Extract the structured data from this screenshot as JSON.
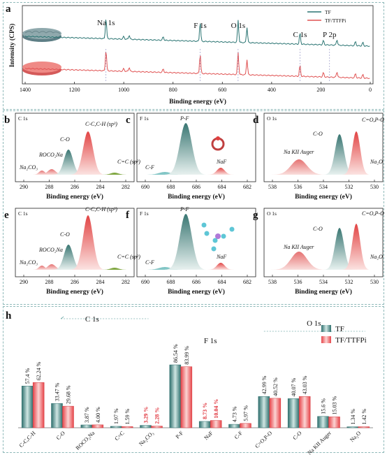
{
  "panel_a": {
    "letter": "a",
    "xlabel": "Binding energy (eV)",
    "ylabel": "Intensity (CPS)",
    "xticks": [
      "1400",
      "1200",
      "1000",
      "800",
      "600",
      "400",
      "200",
      "0"
    ],
    "peak_labels": [
      "Na 1s",
      "F 1s",
      "O 1s",
      "C 1s",
      "P 2p"
    ],
    "legend": [
      "TF",
      "TF/TTFPi"
    ],
    "colors": {
      "TF": "#2a7472",
      "TF/TTFPi": "#e05252"
    }
  },
  "xps_panels": [
    {
      "letter": "b",
      "element": "C 1s",
      "xticks": [
        "290",
        "288",
        "286",
        "284",
        "282"
      ],
      "xlabel": "Binding energy (eV)",
      "peaks": [
        "Na₂CO₃",
        "ROCO₂Na",
        "C-O",
        "C-C,C-H (sp³)",
        "C=C (sp²)"
      ]
    },
    {
      "letter": "c",
      "element": "F 1s",
      "xticks": [
        "690",
        "688",
        "686",
        "684",
        "682"
      ],
      "xlabel": "Binding energy (eV)",
      "peaks": [
        "C-F",
        "P-F",
        "NaF"
      ]
    },
    {
      "letter": "d",
      "element": "O 1s",
      "xticks": [
        "538",
        "536",
        "534",
        "532",
        "530"
      ],
      "xlabel": "Binding energy (eV)",
      "peaks": [
        "Na KII Auger",
        "C-O",
        "C=O,P-O",
        "Na₂O"
      ]
    },
    {
      "letter": "e",
      "element": "C 1s",
      "xticks": [
        "290",
        "288",
        "286",
        "284",
        "282"
      ],
      "xlabel": "Binding energy (eV)",
      "peaks": [
        "Na₂CO₃",
        "ROCO₂Na",
        "C-O",
        "C-C,C-H (sp³)",
        "C=C (sp²)"
      ]
    },
    {
      "letter": "f",
      "element": "F 1s",
      "xticks": [
        "690",
        "688",
        "686",
        "684",
        "682"
      ],
      "xlabel": "Binding energy (eV)",
      "peaks": [
        "C-F",
        "P-F",
        "NaF"
      ]
    },
    {
      "letter": "g",
      "element": "O 1s",
      "xticks": [
        "538",
        "536",
        "534",
        "532",
        "530"
      ],
      "xlabel": "Binding energy (eV)",
      "peaks": [
        "Na KII Auger",
        "C-O",
        "C=O,P-O",
        "Na₂O"
      ]
    }
  ],
  "chart_data": {
    "type": "bar",
    "letter": "h",
    "categories": [
      "C-C,C-H",
      "C-O",
      "ROCO₂Na",
      "C=C",
      "Na₂CO₃",
      "P-F",
      "NaF",
      "C-F",
      "C=O,P-O",
      "C-O",
      "Na KII Auger",
      "Na₂O"
    ],
    "groups": [
      {
        "label": "C 1s",
        "categories": [
          0,
          4
        ]
      },
      {
        "label": "F 1s",
        "categories": [
          5,
          7
        ]
      },
      {
        "label": "O 1s",
        "categories": [
          8,
          11
        ]
      }
    ],
    "series": [
      {
        "name": "TF",
        "values": [
          57.4,
          33.47,
          3.87,
          1.97,
          3.29,
          86.54,
          8.73,
          4.73,
          42.99,
          40.07,
          15.6,
          1.34
        ],
        "labels": [
          "57.4 %",
          "33.47 %",
          "3.87 %",
          "1.97 %",
          "3.29 %",
          "86.54 %",
          "8.73 %",
          "4.73 %",
          "42.99 %",
          "40.07 %",
          "15.6 %",
          "1.34 %"
        ],
        "color": "#4e9a98"
      },
      {
        "name": "TF/TTFPi",
        "values": [
          62.24,
          29.68,
          4.0,
          1.59,
          2.28,
          83.99,
          10.04,
          5.97,
          40.52,
          43.03,
          15.03,
          1.42
        ],
        "labels": [
          "62.24 %",
          "29.68 %",
          "4.00 %",
          "1.59 %",
          "2.28 %",
          "83.99 %",
          "10.04 %",
          "5.97 %",
          "40.52 %",
          "43.03 %",
          "15.03 %",
          "1.42 %"
        ],
        "color": "#ea5a5f"
      }
    ],
    "highlight_categories": [
      4,
      6
    ],
    "ylim": [
      0,
      100
    ]
  }
}
